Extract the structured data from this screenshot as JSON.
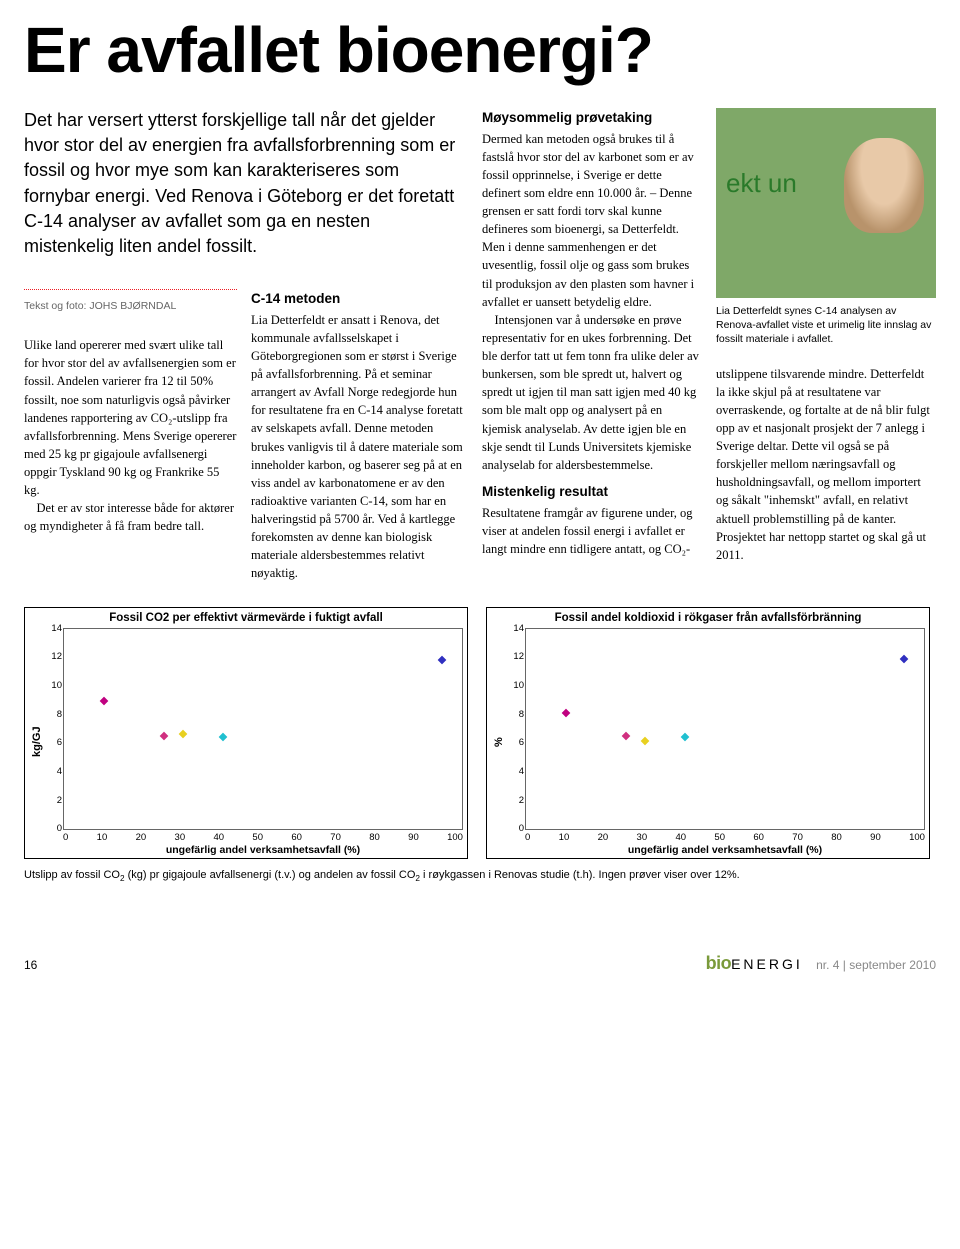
{
  "headline": "Er avfallet bioenergi?",
  "intro": "Det har versert ytterst forskjellige tall når det gjelder hvor stor del av energien fra avfallsforbrenning som er fossil og hvor mye som kan karakteriseres som fornybar energi. Ved Renova i Göteborg er det foretatt C-14 analyser av avfallet som ga en nesten mistenkelig liten andel fossilt.",
  "byline": "Tekst og foto: JOHS BJØRNDAL",
  "col1": {
    "p1": "Ulike land opererer med svært ulike tall for hvor stor del av avfallsenergien som er fossil. Andelen varierer fra 12 til 50% fossilt, noe som naturligvis også påvirker landenes rapportering av CO₂-utslipp fra avfallsforbrenning. Mens Sverige opererer med 25 kg pr gigajoule avfallsenergi oppgir Tyskland 90 kg og Frankrike 55 kg.",
    "p2": "Det er av stor interesse både for aktører og myndigheter å få fram bedre tall."
  },
  "col2": {
    "h": "C-14 metoden",
    "p1": "Lia Detterfeldt er ansatt i Renova, det kommunale avfallsselskapet i Göteborgregionen som er størst i Sverige på avfallsforbrenning. På et seminar arrangert av Avfall Norge redegjorde hun for resultatene fra en C-14 analyse foretatt av selskapets avfall. Denne metoden brukes vanligvis til å datere materiale som inneholder karbon, og baserer seg på at en viss andel av karbonatomene er av den radioaktive varianten C-14, som har en halveringstid på 5700 år. Ved å kartlegge forekomsten av denne kan biologisk materiale aldersbestemmes relativt nøyaktig."
  },
  "col3": {
    "h1": "Møysommelig prøvetaking",
    "p1": "Dermed kan metoden også brukes til å fastslå hvor stor del av karbonet som er av fossil opprinnelse, i Sverige er dette definert som eldre enn 10.000 år. – Denne grensen er satt fordi torv skal kunne defineres som bioenergi, sa Detterfeldt. Men i denne sammenhengen er det uvesentlig, fossil olje og gass som brukes til produksjon av den plasten som havner i avfallet er uansett betydelig eldre.",
    "p2": "Intensjonen var å undersøke en prøve representativ for en ukes forbrenning. Det ble derfor tatt ut fem tonn fra ulike deler av bunkersen, som ble spredt ut, halvert og spredt ut igjen til man satt igjen med 40 kg som ble malt opp og analysert på en kjemisk analyselab. Av dette igjen ble en skje sendt til Lunds Universitets kjemiske analyselab for aldersbestemmelse.",
    "h2": "Mistenkelig resultat",
    "p3": "Resultatene framgår av figurene under, og viser at andelen fossil energi i avfallet er langt mindre enn tidligere antatt, og CO₂-"
  },
  "col4": {
    "caption": "Lia Detterfeldt synes C-14 analysen av Renova-avfallet viste et urimelig lite innslag av fossilt materiale i avfallet.",
    "p1": "utslippene tilsvarende mindre. Detterfeldt la ikke skjul på at resultatene var overraskende, og fortalte at de nå blir fulgt opp av et nasjonalt prosjekt der 7 anlegg i Sverige deltar. Dette vil også se på forskjeller mellom næringsavfall og husholdningsavfall, og mellom importert og såkalt \"inhemskt\" avfall, en relativt aktuell problemstilling på de kanter. Prosjektet har nettopp startet og skal gå ut 2011."
  },
  "chart_left": {
    "title": "Fossil CO2 per effektivt värmevärde i fuktigt avfall",
    "ylabel": "kg/GJ",
    "xlabel": "ungefärlig andel verksamhetsavfall (%)",
    "ylim": [
      0,
      14
    ],
    "ytick_step": 2,
    "xlim": [
      0,
      100
    ],
    "xtick_step": 10,
    "points": [
      {
        "x": 10,
        "y": 8.9,
        "color": "#c00080"
      },
      {
        "x": 25,
        "y": 6.5,
        "color": "#d03080"
      },
      {
        "x": 30,
        "y": 6.6,
        "color": "#e8d020"
      },
      {
        "x": 40,
        "y": 6.4,
        "color": "#20c0d0"
      },
      {
        "x": 95,
        "y": 11.8,
        "color": "#3030c0"
      }
    ],
    "background": "#ffffff",
    "border_color": "#666666"
  },
  "chart_right": {
    "title": "Fossil andel koldioxid i rökgaser från avfallsförbränning",
    "ylabel": "%",
    "xlabel": "ungefärlig andel verksamhetsavfall (%)",
    "ylim": [
      0,
      14
    ],
    "ytick_step": 2,
    "xlim": [
      0,
      100
    ],
    "xtick_step": 10,
    "points": [
      {
        "x": 10,
        "y": 8.1,
        "color": "#c00080"
      },
      {
        "x": 25,
        "y": 6.5,
        "color": "#d03080"
      },
      {
        "x": 30,
        "y": 6.1,
        "color": "#e8d020"
      },
      {
        "x": 40,
        "y": 6.4,
        "color": "#20c0d0"
      },
      {
        "x": 95,
        "y": 11.9,
        "color": "#3030c0"
      }
    ],
    "background": "#ffffff",
    "border_color": "#666666"
  },
  "figure_caption_a": "Utslipp av fossil CO",
  "figure_caption_b": " (kg) pr gigajoule avfallsenergi (t.v.) og andelen av fossil CO",
  "figure_caption_c": " i røykgassen i Renovas studie (t.h). Ingen prøver viser over 12%.",
  "footer": {
    "page": "16",
    "logo_bio": "bio",
    "logo_energi": "ENERGI",
    "issue_label": "nr. 4",
    "issue_date": "september 2010"
  }
}
